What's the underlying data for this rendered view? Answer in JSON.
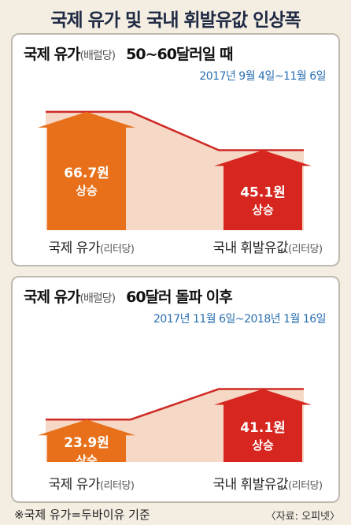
{
  "title": "국제 유가 및 국내 휘발유값 인상폭",
  "colors": {
    "left_arrow": "#e8701a",
    "right_arrow": "#d7261f",
    "band_fill": "#f5d9c6",
    "band_line": "#cf2a25"
  },
  "chart_data": [
    {
      "type": "bar",
      "title_main": "국제 유가",
      "title_unit": "(배럴당)",
      "title_condition": "50~60달러일 때",
      "period": "2017년 9월 4일~11월 6일",
      "categories": [
        {
          "name": "국제 유가",
          "unit": "(리터당)"
        },
        {
          "name": "국내 휘발유값",
          "unit": "(리터당)"
        }
      ],
      "values": [
        66.7,
        45.1
      ],
      "value_labels": [
        "66.7원",
        "45.1원"
      ],
      "direction_label": "상승"
    },
    {
      "type": "bar",
      "title_main": "국제 유가",
      "title_unit": "(배럴당)",
      "title_condition": "60달러 돌파 이후",
      "period": "2017년 11월 6일~2018년 1월 16일",
      "categories": [
        {
          "name": "국제 유가",
          "unit": "(리터당)"
        },
        {
          "name": "국내 휘발유값",
          "unit": "(리터당)"
        }
      ],
      "values": [
        23.9,
        41.1
      ],
      "value_labels": [
        "23.9원",
        "41.1원"
      ],
      "direction_label": "상승"
    }
  ],
  "footnote": "※국제 유가=두바이유 기준",
  "source": "〈자료: 오피넷〉"
}
